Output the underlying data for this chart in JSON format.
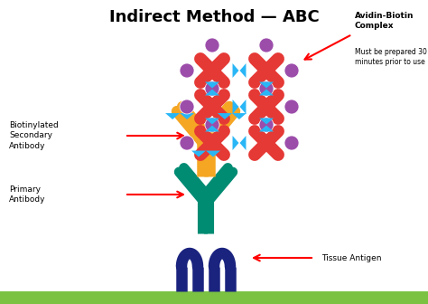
{
  "title": "Indirect Method — ABC",
  "title_fontsize": 13,
  "title_fontweight": "bold",
  "bg_color": "#ffffff",
  "green_bar_color": "#7bc243",
  "colors": {
    "primary": "#008b73",
    "secondary": "#f5a623",
    "tissue": "#1a237e",
    "abc_cross": "#e53935",
    "biotin_circle": "#9c4daa",
    "streptavidin_triangle": "#29b6f6"
  },
  "labels": {
    "avidin_biotin": "Avidin-Biotin\nComplex",
    "must_be": "Must be prepared 30\nminutes prior to use",
    "biotinylated": "Biotinylated\nSecondary\nAntibody",
    "primary": "Primary\nAntibody",
    "tissue_antigen": "Tissue Antigen"
  },
  "figsize": [
    4.74,
    3.36
  ],
  "dpi": 100,
  "xlim": [
    0,
    474
  ],
  "ylim": [
    0,
    336
  ]
}
